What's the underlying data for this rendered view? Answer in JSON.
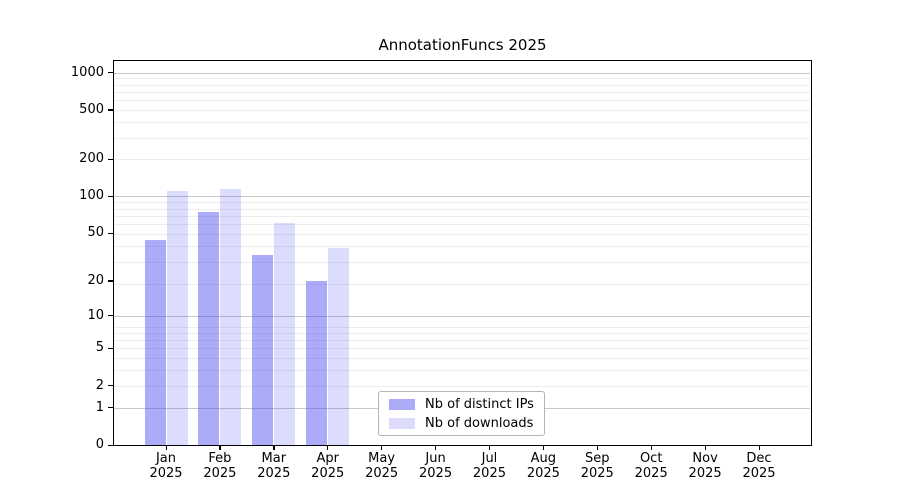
{
  "title": "AnnotationFuncs 2025",
  "chart_data": {
    "type": "bar",
    "title": "AnnotationFuncs 2025",
    "categories": [
      "Jan",
      "Feb",
      "Mar",
      "Apr",
      "May",
      "Jun",
      "Jul",
      "Aug",
      "Sep",
      "Oct",
      "Nov",
      "Dec"
    ],
    "year": "2025",
    "series": [
      {
        "name": "Nb of distinct IPs",
        "values": [
          44,
          75,
          33,
          20,
          0,
          0,
          0,
          0,
          0,
          0,
          0,
          0
        ],
        "bar_color_rgba": "rgba(68,68,239,0.45)",
        "legend_color": "#ababf8"
      },
      {
        "name": "Nb of downloads",
        "values": [
          110,
          114,
          61,
          38,
          0,
          0,
          0,
          0,
          0,
          0,
          0,
          0
        ],
        "bar_color_rgba": "rgba(68,68,239,0.19)",
        "legend_color": "#dcdcfa"
      }
    ],
    "yscale": "log1p",
    "ylim": [
      0,
      1230
    ],
    "yticks": [
      0,
      1,
      2,
      5,
      10,
      20,
      50,
      100,
      200,
      500,
      1000
    ],
    "major_gridline_values": [
      1,
      10,
      100,
      1000
    ],
    "grid_major_color": "#c8c8c8",
    "grid_minor_color": "#ededed",
    "legend_position": "lower center",
    "grid": "on"
  }
}
